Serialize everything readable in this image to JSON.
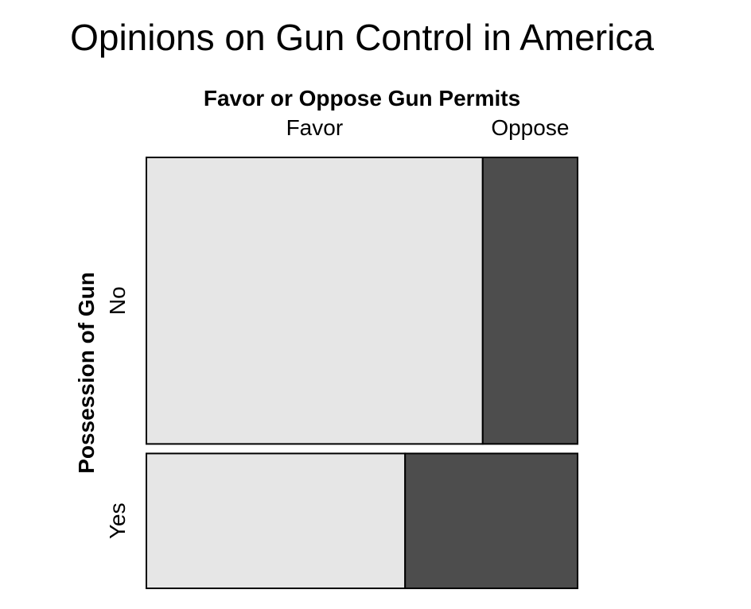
{
  "chart_data": {
    "type": "mosaic",
    "title": "Opinions on Gun Control in America",
    "xlabel": "Favor or Oppose Gun Permits",
    "ylabel": "Possession of Gun",
    "column_categories": [
      "Favor",
      "Oppose"
    ],
    "row_categories": [
      "No",
      "Yes"
    ],
    "row_shares": [
      0.68,
      0.32
    ],
    "column_shares_by_row": [
      {
        "row": "No",
        "values": [
          0.78,
          0.22
        ]
      },
      {
        "row": "Yes",
        "values": [
          0.6,
          0.4
        ]
      }
    ],
    "colors": {
      "Favor": "#e6e6e6",
      "Oppose": "#4d4d4d"
    },
    "legend": "none",
    "grid": false
  }
}
